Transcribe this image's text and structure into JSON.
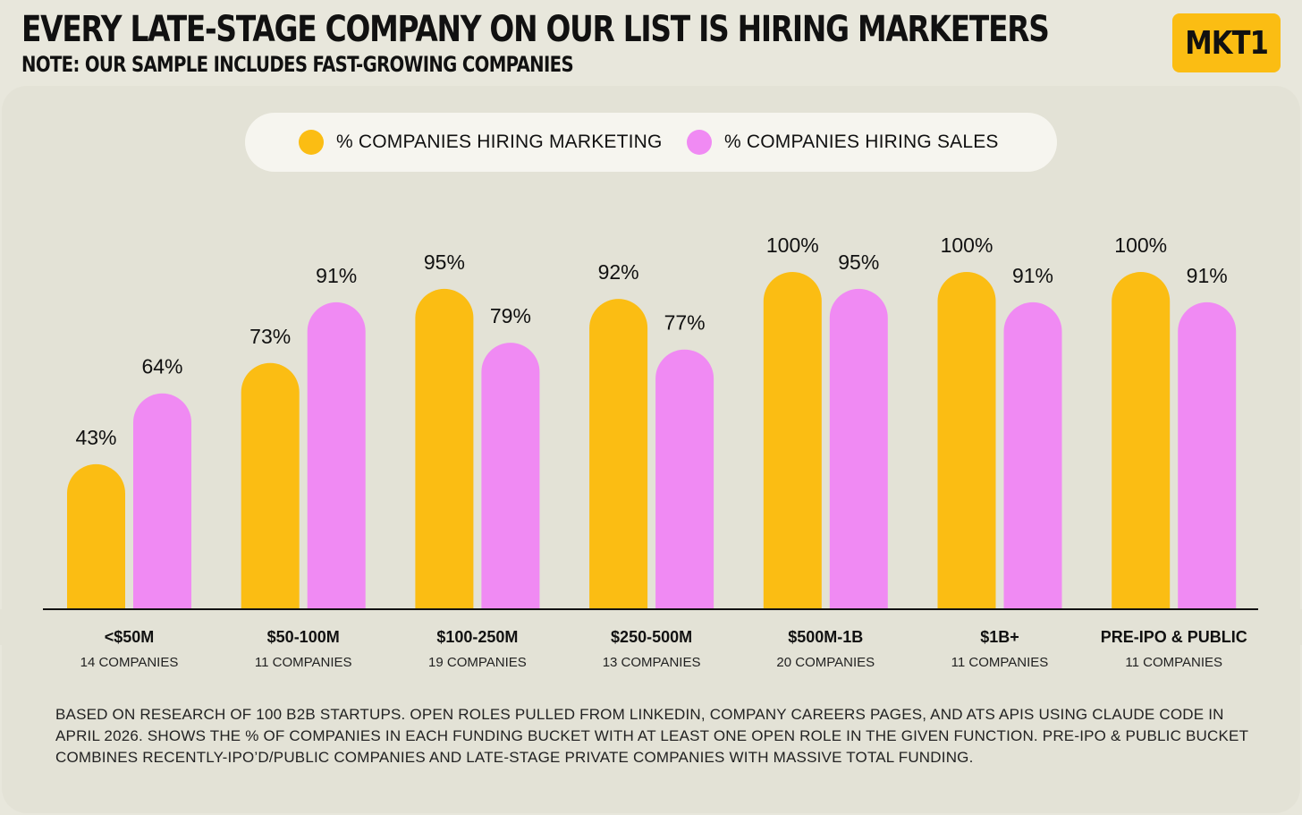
{
  "header": {
    "title": "EVERY LATE-STAGE COMPANY ON OUR LIST IS HIRING MARKETERS",
    "subtitle": "NOTE: OUR SAMPLE INCLUDES FAST-GROWING COMPANIES",
    "logo": "MKT1"
  },
  "colors": {
    "marketing": "#fbbd13",
    "sales": "#f08af3",
    "background": "#e3e2d6"
  },
  "chart_data": {
    "type": "bar",
    "categories": [
      "<$50M",
      "$50-100M",
      "$100-250M",
      "$250-500M",
      "$500M-1B",
      "$1B+",
      "PRE-IPO & PUBLIC"
    ],
    "category_notes": [
      "14 COMPANIES",
      "11 COMPANIES",
      "19 COMPANIES",
      "13 COMPANIES",
      "20 COMPANIES",
      "11 COMPANIES",
      "11 COMPANIES"
    ],
    "series": [
      {
        "name": "% COMPANIES HIRING MARKETING",
        "color": "#fbbd13",
        "values": [
          43,
          73,
          95,
          92,
          100,
          100,
          100
        ],
        "labels": [
          "43%",
          "73%",
          "95%",
          "92%",
          "100%",
          "100%",
          "100%"
        ]
      },
      {
        "name": "% COMPANIES HIRING SALES",
        "color": "#f08af3",
        "values": [
          64,
          91,
          79,
          77,
          95,
          91,
          91
        ],
        "labels": [
          "64%",
          "91%",
          "79%",
          "77%",
          "95%",
          "91%",
          "91%"
        ]
      }
    ],
    "ylim": [
      0,
      100
    ],
    "grid": false,
    "legend_position": "top-center"
  },
  "footnote": "BASED ON RESEARCH OF 100 B2B STARTUPS. OPEN ROLES PULLED FROM LINKEDIN, COMPANY CAREERS PAGES, AND ATS APIS USING CLAUDE CODE IN APRIL 2026. SHOWS THE % OF COMPANIES IN EACH FUNDING BUCKET WITH AT LEAST ONE OPEN ROLE IN THE GIVEN FUNCTION. PRE-IPO & PUBLIC BUCKET COMBINES RECENTLY-IPO’D/PUBLIC COMPANIES AND LATE-STAGE PRIVATE COMPANIES WITH MASSIVE TOTAL FUNDING."
}
